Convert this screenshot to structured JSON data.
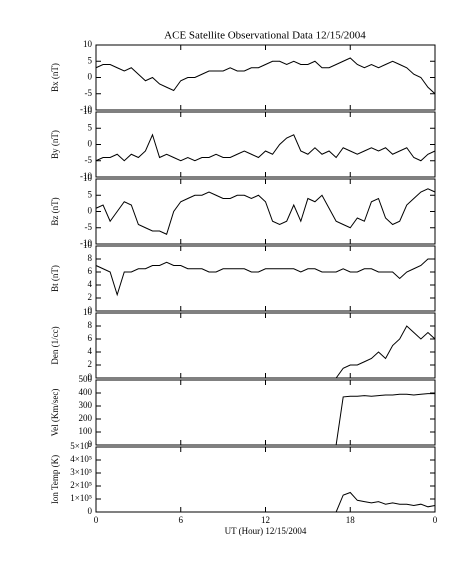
{
  "chart_data": [
    {
      "type": "line",
      "title": "ACE Satellite Observational Data   12/15/2004",
      "ylabel": "Bx (nT)",
      "color": "#000000",
      "x": [
        0,
        0.5,
        1,
        1.5,
        2,
        2.5,
        3,
        3.5,
        4,
        4.5,
        5,
        5.5,
        6,
        6.5,
        7,
        7.5,
        8,
        8.5,
        9,
        9.5,
        10,
        10.5,
        11,
        11.5,
        12,
        12.5,
        13,
        13.5,
        14,
        14.5,
        15,
        15.5,
        16,
        16.5,
        17,
        17.5,
        18,
        18.5,
        19,
        19.5,
        20,
        20.5,
        21,
        21.5,
        22,
        22.5,
        23,
        23.5,
        24
      ],
      "values": [
        3,
        4,
        4,
        3,
        2,
        3,
        1,
        -1,
        0,
        -2,
        -3,
        -4,
        -1,
        0,
        0,
        1,
        2,
        2,
        2,
        3,
        2,
        2,
        3,
        3,
        4,
        5,
        5,
        4,
        5,
        4,
        4,
        5,
        3,
        3,
        4,
        5,
        6,
        4,
        3,
        4,
        3,
        4,
        5,
        4,
        3,
        1,
        0,
        -3,
        -5
      ],
      "xlim": [
        0,
        24
      ],
      "ylim": [
        -10,
        10
      ],
      "yticks": [
        -10,
        -5,
        0,
        5,
        10
      ]
    },
    {
      "type": "line",
      "ylabel": "By (nT)",
      "color": "#000000",
      "x": [
        0,
        0.5,
        1,
        1.5,
        2,
        2.5,
        3,
        3.5,
        4,
        4.5,
        5,
        5.5,
        6,
        6.5,
        7,
        7.5,
        8,
        8.5,
        9,
        9.5,
        10,
        10.5,
        11,
        11.5,
        12,
        12.5,
        13,
        13.5,
        14,
        14.5,
        15,
        15.5,
        16,
        16.5,
        17,
        17.5,
        18,
        18.5,
        19,
        19.5,
        20,
        20.5,
        21,
        21.5,
        22,
        22.5,
        23,
        23.5,
        24
      ],
      "values": [
        -5,
        -4,
        -4,
        -3,
        -5,
        -3,
        -4,
        -2,
        3,
        -4,
        -3,
        -4,
        -5,
        -4,
        -5,
        -4,
        -4,
        -3,
        -4,
        -4,
        -3,
        -2,
        -3,
        -4,
        -2,
        -3,
        0,
        2,
        3,
        -2,
        -3,
        -1,
        -3,
        -2,
        -4,
        -1,
        -2,
        -3,
        -2,
        -1,
        -2,
        -1,
        -3,
        -2,
        -1,
        -4,
        -5,
        -3,
        -2
      ],
      "xlim": [
        0,
        24
      ],
      "ylim": [
        -10,
        10
      ],
      "yticks": [
        -10,
        -5,
        0,
        5,
        10
      ]
    },
    {
      "type": "line",
      "ylabel": "Bz (nT)",
      "color": "#000000",
      "x": [
        0,
        0.5,
        1,
        1.5,
        2,
        2.5,
        3,
        3.5,
        4,
        4.5,
        5,
        5.5,
        6,
        6.5,
        7,
        7.5,
        8,
        8.5,
        9,
        9.5,
        10,
        10.5,
        11,
        11.5,
        12,
        12.5,
        13,
        13.5,
        14,
        14.5,
        15,
        15.5,
        16,
        16.5,
        17,
        17.5,
        18,
        18.5,
        19,
        19.5,
        20,
        20.5,
        21,
        21.5,
        22,
        22.5,
        23,
        23.5,
        24
      ],
      "values": [
        1,
        2,
        -3,
        0,
        3,
        2,
        -4,
        -5,
        -6,
        -6,
        -7,
        0,
        3,
        4,
        5,
        5,
        6,
        5,
        4,
        4,
        5,
        5,
        4,
        5,
        3,
        -3,
        -4,
        -3,
        2,
        -3,
        4,
        3,
        5,
        1,
        -3,
        -4,
        -5,
        -2,
        -3,
        3,
        4,
        -2,
        -4,
        -3,
        2,
        4,
        6,
        7,
        6
      ],
      "xlim": [
        0,
        24
      ],
      "ylim": [
        -10,
        10
      ],
      "yticks": [
        -10,
        -5,
        0,
        5,
        10
      ]
    },
    {
      "type": "line",
      "ylabel": "Bt (nT)",
      "color": "#000000",
      "x": [
        0,
        0.5,
        1,
        1.5,
        2,
        2.5,
        3,
        3.5,
        4,
        4.5,
        5,
        5.5,
        6,
        6.5,
        7,
        7.5,
        8,
        8.5,
        9,
        9.5,
        10,
        10.5,
        11,
        11.5,
        12,
        12.5,
        13,
        13.5,
        14,
        14.5,
        15,
        15.5,
        16,
        16.5,
        17,
        17.5,
        18,
        18.5,
        19,
        19.5,
        20,
        20.5,
        21,
        21.5,
        22,
        22.5,
        23,
        23.5,
        24
      ],
      "values": [
        7,
        6.5,
        6,
        2.5,
        6,
        6,
        6.5,
        6.5,
        7,
        7,
        7.5,
        7,
        7,
        6.5,
        6.5,
        6.5,
        6,
        6,
        6.5,
        6.5,
        6.5,
        6.5,
        6,
        6,
        6.5,
        6.5,
        6.5,
        6.5,
        6.5,
        6,
        6.5,
        6.5,
        6,
        6,
        6,
        6.5,
        6,
        6,
        6.5,
        6.5,
        6,
        6,
        6,
        5,
        6,
        6.5,
        7,
        8,
        8
      ],
      "xlim": [
        0,
        24
      ],
      "ylim": [
        0,
        10
      ],
      "yticks": [
        0,
        2,
        4,
        6,
        8,
        10
      ]
    },
    {
      "type": "line",
      "ylabel": "Den (1/cc)",
      "color": "#000000",
      "x": [
        0,
        0.5,
        1,
        1.5,
        2,
        2.5,
        3,
        3.5,
        4,
        4.5,
        5,
        5.5,
        6,
        6.5,
        7,
        7.5,
        8,
        8.5,
        9,
        9.5,
        10,
        10.5,
        11,
        11.5,
        12,
        12.5,
        13,
        13.5,
        14,
        14.5,
        15,
        15.5,
        16,
        16.5,
        17,
        17.5,
        18,
        18.5,
        19,
        19.5,
        20,
        20.5,
        21,
        21.5,
        22,
        22.5,
        23,
        23.5,
        24
      ],
      "values": [
        0,
        0,
        0,
        0,
        0,
        0,
        0,
        0,
        0,
        0,
        0,
        0,
        0,
        0,
        0,
        0,
        0,
        0,
        0,
        0,
        0,
        0,
        0,
        0,
        0,
        0,
        0,
        0,
        0,
        0,
        0,
        0,
        0,
        0,
        0,
        1.5,
        2,
        2,
        2.5,
        3,
        4,
        3,
        5,
        6,
        8,
        7,
        6,
        7,
        6
      ],
      "xlim": [
        0,
        24
      ],
      "ylim": [
        0,
        10
      ],
      "yticks": [
        0,
        2,
        4,
        6,
        8,
        10
      ]
    },
    {
      "type": "line",
      "ylabel": "Vel (Km/sec)",
      "color": "#000000",
      "x": [
        0,
        0.5,
        1,
        1.5,
        2,
        2.5,
        3,
        3.5,
        4,
        4.5,
        5,
        5.5,
        6,
        6.5,
        7,
        7.5,
        8,
        8.5,
        9,
        9.5,
        10,
        10.5,
        11,
        11.5,
        12,
        12.5,
        13,
        13.5,
        14,
        14.5,
        15,
        15.5,
        16,
        16.5,
        17,
        17.5,
        18,
        18.5,
        19,
        19.5,
        20,
        20.5,
        21,
        21.5,
        22,
        22.5,
        23,
        23.5,
        24
      ],
      "values": [
        0,
        0,
        0,
        0,
        0,
        0,
        0,
        0,
        0,
        0,
        0,
        0,
        0,
        0,
        0,
        0,
        0,
        0,
        0,
        0,
        0,
        0,
        0,
        0,
        0,
        0,
        0,
        0,
        0,
        0,
        0,
        0,
        0,
        0,
        0,
        370,
        375,
        375,
        380,
        375,
        380,
        385,
        385,
        390,
        390,
        385,
        390,
        395,
        395
      ],
      "xlim": [
        0,
        24
      ],
      "ylim": [
        0,
        500
      ],
      "yticks": [
        0,
        100,
        200,
        300,
        400,
        500
      ]
    },
    {
      "type": "line",
      "ylabel": "Ion Temp (K)",
      "xlabel": "UT (Hour)  12/15/2004",
      "color": "#000000",
      "x": [
        0,
        0.5,
        1,
        1.5,
        2,
        2.5,
        3,
        3.5,
        4,
        4.5,
        5,
        5.5,
        6,
        6.5,
        7,
        7.5,
        8,
        8.5,
        9,
        9.5,
        10,
        10.5,
        11,
        11.5,
        12,
        12.5,
        13,
        13.5,
        14,
        14.5,
        15,
        15.5,
        16,
        16.5,
        17,
        17.5,
        18,
        18.5,
        19,
        19.5,
        20,
        20.5,
        21,
        21.5,
        22,
        22.5,
        23,
        23.5,
        24
      ],
      "values": [
        0,
        0,
        0,
        0,
        0,
        0,
        0,
        0,
        0,
        0,
        0,
        0,
        0,
        0,
        0,
        0,
        0,
        0,
        0,
        0,
        0,
        0,
        0,
        0,
        0,
        0,
        0,
        0,
        0,
        0,
        0,
        0,
        0,
        0,
        0,
        130000,
        150000,
        90000,
        80000,
        70000,
        80000,
        60000,
        70000,
        60000,
        60000,
        50000,
        60000,
        40000,
        50000
      ],
      "xlim": [
        0,
        24
      ],
      "ylim": [
        0,
        500000
      ],
      "yticks": [
        0,
        {
          "value": 100000,
          "label": "1×10⁵"
        },
        {
          "value": 200000,
          "label": "2×10⁵"
        },
        {
          "value": 300000,
          "label": "3×10⁵"
        },
        {
          "value": 400000,
          "label": "4×10⁵"
        },
        {
          "value": 500000,
          "label": "5×10⁵"
        }
      ],
      "xticks": [
        0,
        6,
        12,
        18,
        {
          "value": 24,
          "label": "0"
        }
      ]
    }
  ]
}
